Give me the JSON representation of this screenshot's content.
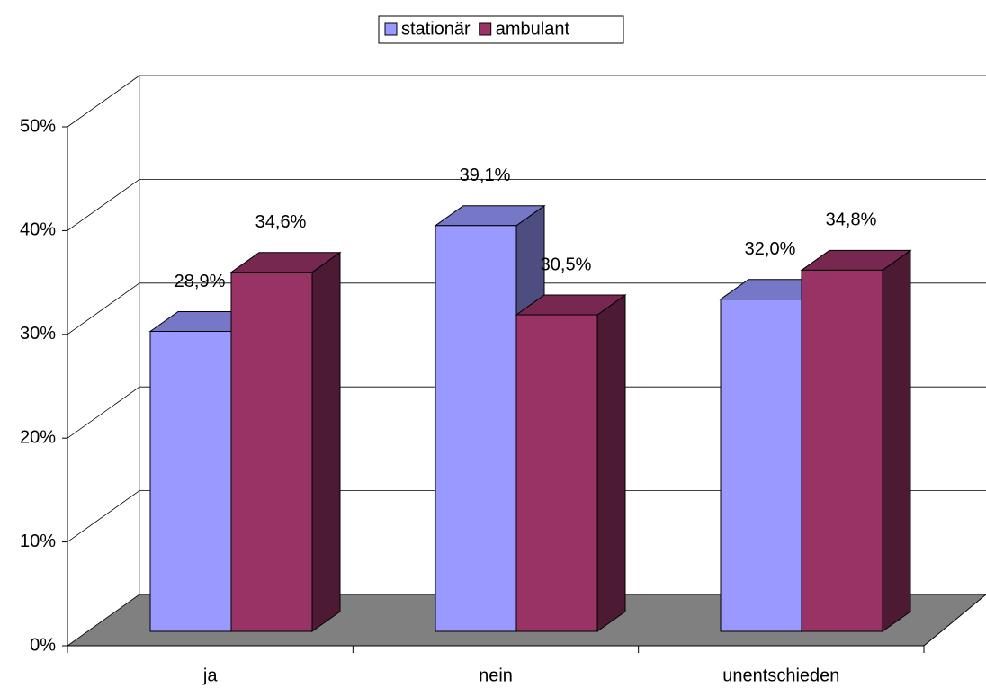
{
  "chart_data": {
    "type": "bar3d",
    "categories": [
      "ja",
      "nein",
      "unentschieden"
    ],
    "series": [
      {
        "name": "stationär",
        "color": "#9999ff",
        "values": [
          28.9,
          39.1,
          32.0
        ],
        "value_labels": [
          "28,9%",
          "39,1%",
          "32,0%"
        ]
      },
      {
        "name": "ambulant",
        "color": "#993366",
        "values": [
          34.6,
          30.5,
          34.8
        ],
        "value_labels": [
          "34,6%",
          "30,5%",
          "34,8%"
        ]
      }
    ],
    "ylim": [
      0,
      50
    ],
    "yticks": [
      {
        "value": 0,
        "label": "0%"
      },
      {
        "value": 10,
        "label": "10%"
      },
      {
        "value": 20,
        "label": "20%"
      },
      {
        "value": 30,
        "label": "30%"
      },
      {
        "value": 40,
        "label": "40%"
      },
      {
        "value": 50,
        "label": "50%"
      }
    ],
    "grid": true,
    "legend": "top"
  }
}
